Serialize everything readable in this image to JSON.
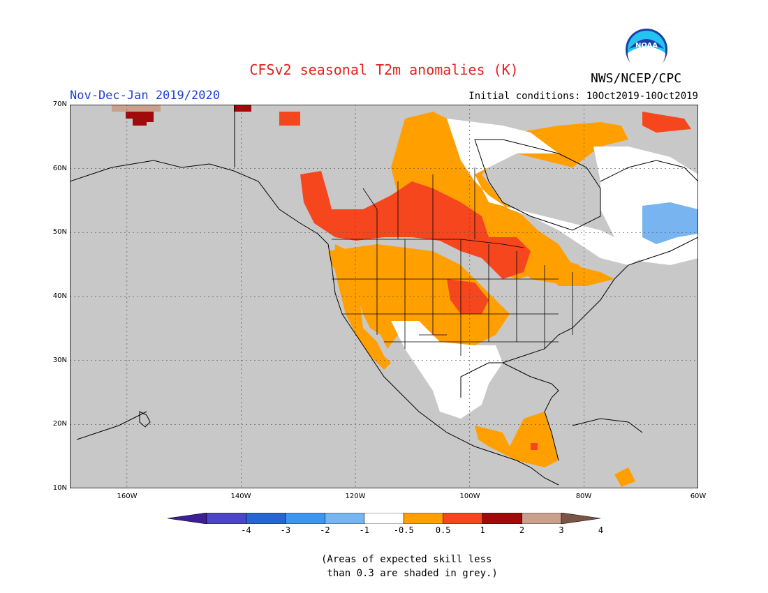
{
  "title": "CFSv2 seasonal T2m anomalies (K)",
  "season_label": "Nov-Dec-Jan 2019/2020",
  "initial_conditions": "Initial conditions: 10Oct2019-10Oct2019",
  "agency": "NWS/NCEP/CPC",
  "logo_text": "NOAA",
  "map": {
    "lon_range": [
      -170,
      -60
    ],
    "lat_range": [
      10,
      70
    ],
    "lat_labels": [
      "70N",
      "60N",
      "50N",
      "40N",
      "30N",
      "20N",
      "10N"
    ],
    "lon_labels": [
      "160W",
      "140W",
      "120W",
      "100W",
      "80W",
      "60W"
    ],
    "background_color": "#c8c8c8",
    "grid": true
  },
  "colorbar": {
    "labels": [
      "-4",
      "-3",
      "-2",
      "-1",
      "-0.5",
      "0.5",
      "1",
      "2",
      "3",
      "4"
    ],
    "colors": [
      "#3c1e96",
      "#4b46c8",
      "#2864d2",
      "#3c96f0",
      "#78b4f0",
      "#ffffff",
      "#ff9f00",
      "#f5461e",
      "#a00a0a",
      "#c8a08c",
      "#7a5546"
    ]
  },
  "anomaly_regions": [
    {
      "class": "0.5-1",
      "color": "#ff9f00",
      "areas": [
        "western Canada",
        "US West & Rockies",
        "southern Plains",
        "Great Lakes",
        "Central America"
      ]
    },
    {
      "class": "1-2",
      "color": "#f5461e",
      "areas": [
        "British Columbia",
        "Alberta",
        "Saskatchewan",
        "Manitoba",
        "northern Plains"
      ]
    },
    {
      "class": "2-3",
      "color": "#a00a0a",
      "areas": [
        "northern Alaska coast"
      ]
    },
    {
      "class": "-0.5-0.5",
      "color": "#ffffff",
      "areas": [
        "Hudson Bay region",
        "Quebec",
        "Texas/northern Mexico"
      ]
    },
    {
      "class": "-1--0.5",
      "color": "#78b4f0",
      "areas": [
        "Labrador/Quebec"
      ]
    }
  ],
  "note": [
    "(Areas of expected skill less",
    " than 0.3 are shaded in grey.)"
  ]
}
